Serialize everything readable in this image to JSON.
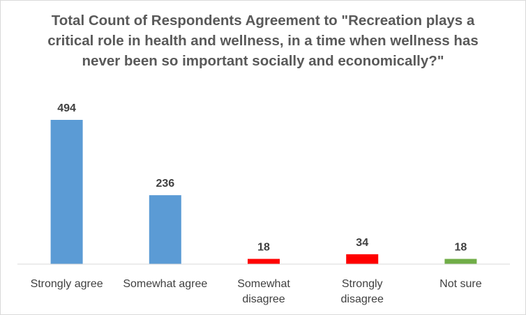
{
  "chart_data": {
    "type": "bar",
    "title": "Total Count of Respondents Agreement to \"Recreation plays a critical role in health and wellness, in a time when wellness has never been so important socially and economically?\"",
    "categories": [
      "Strongly agree",
      "Somewhat agree",
      "Somewhat disagree",
      "Strongly disagree",
      "Not sure"
    ],
    "values": [
      494,
      236,
      18,
      34,
      18
    ],
    "data_labels": [
      "494",
      "236",
      "18",
      "34",
      "18"
    ],
    "bar_colors": [
      "#5b9bd5",
      "#5b9bd5",
      "#ff0000",
      "#ff0000",
      "#70ad47"
    ],
    "xlabel": "",
    "ylabel": "",
    "ylim": [
      0,
      494
    ],
    "grid": false,
    "legend": "none",
    "y_axis_visible": false
  },
  "colors": {
    "title_text": "#595959",
    "label_text": "#404040",
    "axis_line": "#d9d9d9",
    "border": "#d9d9d9"
  }
}
